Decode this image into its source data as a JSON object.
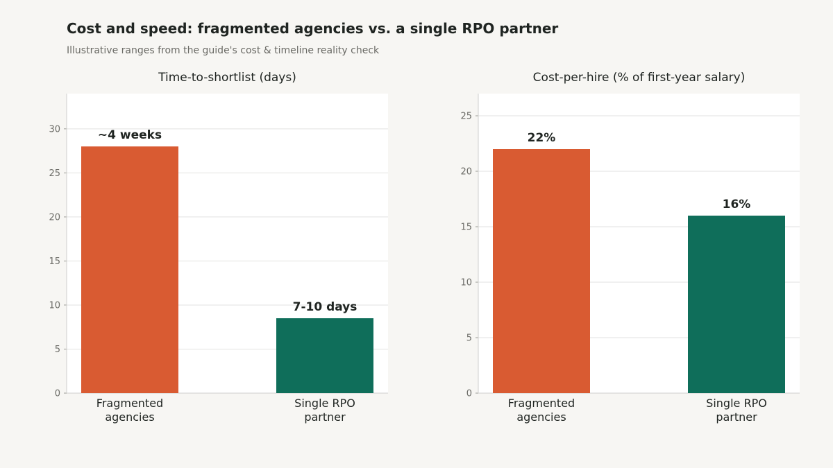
{
  "title": "Cost and speed: fragmented agencies vs. a single RPO partner",
  "subtitle": "Illustrative ranges from the guide's cost & timeline reality check",
  "colors": {
    "fragmented": "#d95b32",
    "rpo": "#0f6e5a",
    "grid": "#e2e2e0",
    "axis": "#cfcfcc"
  },
  "chart_data": [
    {
      "type": "bar",
      "title": "Time-to-shortlist (days)",
      "categories": [
        "Fragmented\nagencies",
        "Single RPO\npartner"
      ],
      "values": [
        28,
        8.5
      ],
      "data_labels": [
        "~4 weeks",
        "7-10 days"
      ],
      "ylim": [
        0,
        34
      ],
      "yticks": [
        0,
        5,
        10,
        15,
        20,
        25,
        30
      ],
      "grid": true
    },
    {
      "type": "bar",
      "title": "Cost-per-hire (% of first-year salary)",
      "categories": [
        "Fragmented\nagencies",
        "Single RPO\npartner"
      ],
      "values": [
        22,
        16
      ],
      "data_labels": [
        "22%",
        "16%"
      ],
      "ylim": [
        0,
        27
      ],
      "yticks": [
        0,
        5,
        10,
        15,
        20,
        25
      ],
      "grid": true
    }
  ]
}
